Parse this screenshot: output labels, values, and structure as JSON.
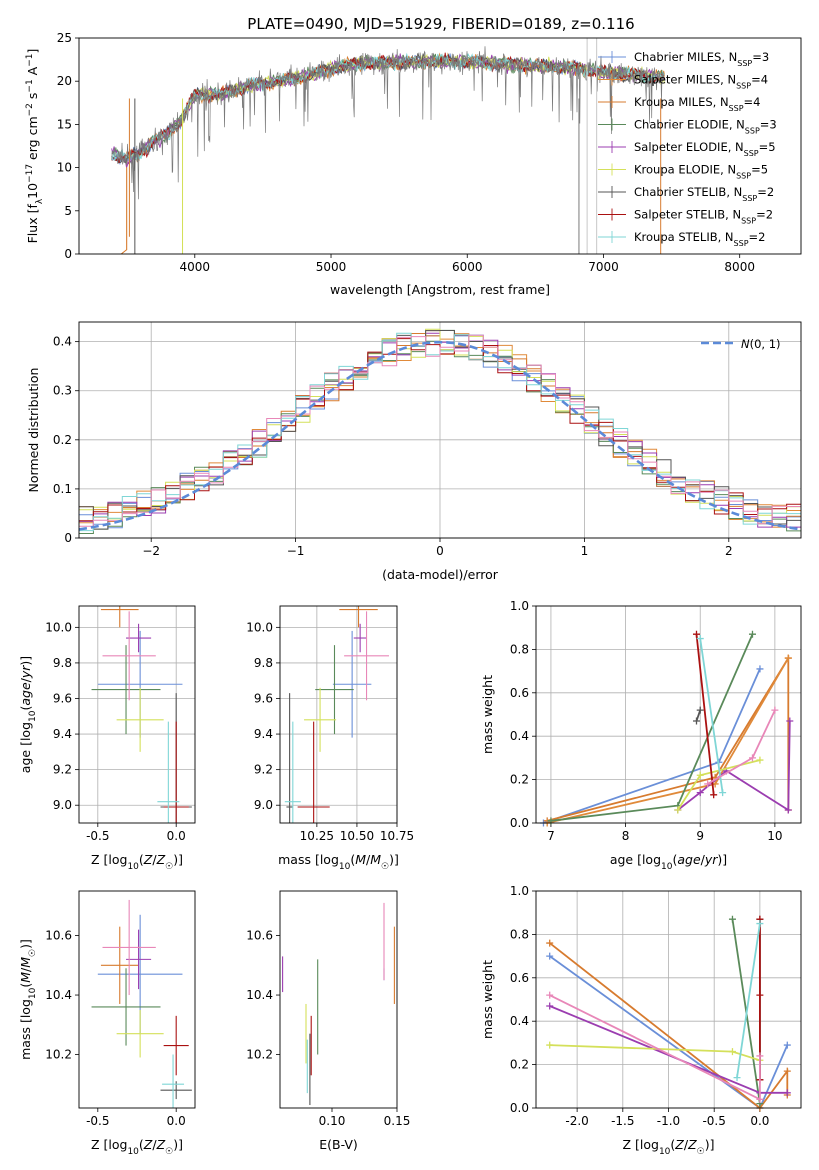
{
  "colors": {
    "Chabrier MILES": "#6a8fd8",
    "Salpeter MILES": "#e08a3a",
    "Kroupa MILES": "#d77b2f",
    "Chabrier ELODIE": "#5a8a5a",
    "Salpeter ELODIE": "#9b3db0",
    "Kroupa ELODIE": "#d4e05a",
    "Chabrier STELIB": "#555555",
    "Salpeter STELIB": "#aa1111",
    "Kroupa STELIB": "#7fd6d6",
    "pink": "#e887b8",
    "normal": "#5b8ad8"
  },
  "chart_data": [
    {
      "id": "spectrum",
      "type": "line",
      "title": "PLATE=0490, MJD=51929, FIBERID=0189, z=0.116",
      "xlabel": "wavelength [Angstrom, rest frame]",
      "ylabel": "Flux [f_λ 10^-17 erg cm^-2 s^-1 A^-1]",
      "xlim": [
        3150,
        8450
      ],
      "ylim": [
        0,
        25
      ],
      "xticks": [
        4000,
        5000,
        6000,
        7000,
        8000
      ],
      "yticks": [
        0,
        5,
        10,
        15,
        20,
        25
      ],
      "legend_position": "right",
      "legend": [
        {
          "label": "Chabrier MILES, N_SSP=3",
          "color": "#6a8fd8"
        },
        {
          "label": "Salpeter MILES, N_SSP=4",
          "color": "#e08a3a"
        },
        {
          "label": "Kroupa MILES, N_SSP=4",
          "color": "#d77b2f"
        },
        {
          "label": "Chabrier ELODIE, N_SSP=3",
          "color": "#5a8a5a"
        },
        {
          "label": "Salpeter ELODIE, N_SSP=5",
          "color": "#9b3db0"
        },
        {
          "label": "Kroupa ELODIE, N_SSP=5",
          "color": "#d4e05a"
        },
        {
          "label": "Chabrier STELIB, N_SSP=2",
          "color": "#555555"
        },
        {
          "label": "Salpeter STELIB, N_SSP=2",
          "color": "#aa1111"
        },
        {
          "label": "Kroupa STELIB, N_SSP=2",
          "color": "#7fd6d6"
        }
      ],
      "continuum_points": [
        [
          3390,
          11.5
        ],
        [
          3500,
          11
        ],
        [
          3600,
          11.8
        ],
        [
          3700,
          13
        ],
        [
          3800,
          14
        ],
        [
          3900,
          15.5
        ],
        [
          4000,
          18.5
        ],
        [
          4200,
          18.5
        ],
        [
          4400,
          19.5
        ],
        [
          4600,
          20
        ],
        [
          4800,
          20.5
        ],
        [
          5000,
          21.5
        ],
        [
          5200,
          22
        ],
        [
          5500,
          22.2
        ],
        [
          5800,
          22.3
        ],
        [
          6000,
          22.3
        ],
        [
          6300,
          22
        ],
        [
          6500,
          21.8
        ],
        [
          6800,
          21.5
        ],
        [
          7000,
          21
        ],
        [
          7300,
          20.6
        ],
        [
          7500,
          20.4
        ]
      ],
      "grey_line_x": [
        6880,
        6950
      ]
    },
    {
      "id": "residuals",
      "type": "histogram",
      "xlabel": "(data-model)/error",
      "ylabel": "Normed distribution",
      "xlim": [
        -2.5,
        2.5
      ],
      "ylim": [
        0,
        0.44
      ],
      "xticks": [
        -2,
        -1,
        0,
        1,
        2
      ],
      "yticks": [
        0.0,
        0.1,
        0.2,
        0.3,
        0.4
      ],
      "bin_width": 0.1,
      "legend": [
        {
          "label": "N(0,1)",
          "style": "dashed",
          "color": "#5b8ad8"
        }
      ],
      "legend_position": "top-right"
    },
    {
      "id": "age_vs_Z",
      "type": "errorbar",
      "xlabel": "Z [log10(Z/Z☉)]",
      "ylabel": "age  [log10(age/yr)]",
      "xlim": [
        -0.62,
        0.12
      ],
      "ylim": [
        8.9,
        10.12
      ],
      "xticks": [
        -0.5,
        0.0
      ],
      "yticks": [
        9.0,
        9.2,
        9.4,
        9.6,
        9.8,
        10.0
      ],
      "points": [
        {
          "c": "#6a8fd8",
          "x": -0.23,
          "xerr": 0.27,
          "y": 9.68,
          "yerr": 0.3
        },
        {
          "c": "#d77b2f",
          "x": -0.36,
          "xerr": 0.12,
          "y": 10.1,
          "yerr": 0.1
        },
        {
          "c": "#5a8a5a",
          "x": -0.32,
          "xerr": 0.22,
          "y": 9.65,
          "yerr": 0.25
        },
        {
          "c": "#9b3db0",
          "x": -0.24,
          "xerr": 0.08,
          "y": 9.94,
          "yerr": 0.08
        },
        {
          "c": "#d4e05a",
          "x": -0.23,
          "xerr": 0.15,
          "y": 9.48,
          "yerr": 0.18
        },
        {
          "c": "#555555",
          "x": 0.0,
          "xerr": 0.1,
          "y": 8.99,
          "yerr": 0.64
        },
        {
          "c": "#aa1111",
          "x": 0.0,
          "xerr": 0.08,
          "y": 8.99,
          "yerr": 0.48
        },
        {
          "c": "#7fd6d6",
          "x": -0.05,
          "xerr": 0.07,
          "y": 9.02,
          "yerr": 0.45
        },
        {
          "c": "#e887b8",
          "x": -0.3,
          "xerr": 0.17,
          "y": 9.84,
          "yerr": 0.25
        }
      ]
    },
    {
      "id": "age_vs_mass",
      "type": "errorbar",
      "xlabel": "mass [log10(M/M☉)]",
      "ylabel": "",
      "xlim": [
        10.02,
        10.75
      ],
      "ylim": [
        8.9,
        10.12
      ],
      "xticks": [
        10.25,
        10.5,
        10.75
      ],
      "yticks": [
        9.0,
        9.2,
        9.4,
        9.6,
        9.8,
        10.0
      ],
      "points": [
        {
          "c": "#6a8fd8",
          "x": 10.47,
          "xerr": 0.12,
          "y": 9.68,
          "yerr": 0.3
        },
        {
          "c": "#d77b2f",
          "x": 10.51,
          "xerr": 0.12,
          "y": 10.1,
          "yerr": 0.1
        },
        {
          "c": "#5a8a5a",
          "x": 10.36,
          "xerr": 0.12,
          "y": 9.65,
          "yerr": 0.25
        },
        {
          "c": "#9b3db0",
          "x": 10.52,
          "xerr": 0.04,
          "y": 9.94,
          "yerr": 0.08
        },
        {
          "c": "#d4e05a",
          "x": 10.27,
          "xerr": 0.1,
          "y": 9.48,
          "yerr": 0.18
        },
        {
          "c": "#555555",
          "x": 10.08,
          "xerr": 0.02,
          "y": 8.99,
          "yerr": 0.64
        },
        {
          "c": "#aa1111",
          "x": 10.23,
          "xerr": 0.1,
          "y": 8.99,
          "yerr": 0.48
        },
        {
          "c": "#7fd6d6",
          "x": 10.1,
          "xerr": 0.05,
          "y": 9.02,
          "yerr": 0.45
        },
        {
          "c": "#e887b8",
          "x": 10.56,
          "xerr": 0.14,
          "y": 9.84,
          "yerr": 0.25
        }
      ]
    },
    {
      "id": "weight_vs_age",
      "type": "line",
      "xlabel": "age  [log10(age/yr)]",
      "ylabel": "mass weight",
      "xlim": [
        6.8,
        10.35
      ],
      "ylim": [
        0,
        1.0
      ],
      "xticks": [
        7,
        8,
        9,
        10
      ],
      "yticks": [
        0.0,
        0.2,
        0.4,
        0.6,
        0.8,
        1.0
      ],
      "series": [
        {
          "c": "#6a8fd8",
          "pts": [
            [
              6.9,
              0.0
            ],
            [
              9.25,
              0.28
            ],
            [
              9.8,
              0.71
            ]
          ]
        },
        {
          "c": "#d77b2f",
          "pts": [
            [
              6.95,
              0.01
            ],
            [
              9.2,
              0.21
            ],
            [
              10.18,
              0.76
            ],
            [
              10.18,
              0.06
            ]
          ]
        },
        {
          "c": "#e08a3a",
          "pts": [
            [
              6.95,
              0.0
            ],
            [
              9.2,
              0.18
            ],
            [
              10.18,
              0.76
            ]
          ]
        },
        {
          "c": "#5a8a5a",
          "pts": [
            [
              7.0,
              0.01
            ],
            [
              8.7,
              0.08
            ],
            [
              9.7,
              0.87
            ]
          ]
        },
        {
          "c": "#9b3db0",
          "pts": [
            [
              8.7,
              0.06
            ],
            [
              9.0,
              0.14
            ],
            [
              9.35,
              0.24
            ],
            [
              10.18,
              0.06
            ],
            [
              10.2,
              0.47
            ]
          ]
        },
        {
          "c": "#d4e05a",
          "pts": [
            [
              8.7,
              0.06
            ],
            [
              9.0,
              0.22
            ],
            [
              9.8,
              0.29
            ]
          ]
        },
        {
          "c": "#555555",
          "pts": [
            [
              9.0,
              0.52
            ],
            [
              8.95,
              0.47
            ]
          ]
        },
        {
          "c": "#aa1111",
          "pts": [
            [
              8.95,
              0.87
            ],
            [
              9.18,
              0.13
            ]
          ]
        },
        {
          "c": "#7fd6d6",
          "pts": [
            [
              9.0,
              0.85
            ],
            [
              9.3,
              0.14
            ]
          ]
        },
        {
          "c": "#e887b8",
          "pts": [
            [
              9.1,
              0.18
            ],
            [
              9.7,
              0.3
            ],
            [
              10.0,
              0.52
            ]
          ]
        }
      ]
    },
    {
      "id": "mass_vs_Z",
      "type": "errorbar",
      "xlabel": "Z [log10(Z/Z☉)]",
      "ylabel": "mass [log10(M/M☉)]",
      "xlim": [
        -0.62,
        0.12
      ],
      "ylim": [
        10.02,
        10.75
      ],
      "xticks": [
        -0.5,
        0.0
      ],
      "yticks": [
        10.2,
        10.4,
        10.6
      ],
      "points": [
        {
          "c": "#6a8fd8",
          "x": -0.23,
          "xerr": 0.27,
          "y": 10.47,
          "yerr": 0.2
        },
        {
          "c": "#d77b2f",
          "x": -0.36,
          "xerr": 0.12,
          "y": 10.5,
          "yerr": 0.13
        },
        {
          "c": "#5a8a5a",
          "x": -0.32,
          "xerr": 0.22,
          "y": 10.36,
          "yerr": 0.13
        },
        {
          "c": "#9b3db0",
          "x": -0.24,
          "xerr": 0.08,
          "y": 10.52,
          "yerr": 0.1
        },
        {
          "c": "#d4e05a",
          "x": -0.23,
          "xerr": 0.15,
          "y": 10.27,
          "yerr": 0.08
        },
        {
          "c": "#555555",
          "x": 0.0,
          "xerr": 0.1,
          "y": 10.08,
          "yerr": 0.03
        },
        {
          "c": "#aa1111",
          "x": 0.0,
          "xerr": 0.08,
          "y": 10.23,
          "yerr": 0.1
        },
        {
          "c": "#7fd6d6",
          "x": -0.02,
          "xerr": 0.07,
          "y": 10.1,
          "yerr": 0.1
        },
        {
          "c": "#e887b8",
          "x": -0.3,
          "xerr": 0.17,
          "y": 10.56,
          "yerr": 0.16
        }
      ]
    },
    {
      "id": "mass_vs_ebv",
      "type": "errorbar",
      "xlabel": "E(B-V)",
      "ylabel": "",
      "xlim": [
        0.06,
        0.15
      ],
      "ylim": [
        10.02,
        10.75
      ],
      "xticks": [
        0.1,
        0.15
      ],
      "yticks": [
        10.2,
        10.4,
        10.6
      ],
      "points": [
        {
          "c": "#6a8fd8",
          "x": 0.14,
          "y": 10.47,
          "yerr": 0.02
        },
        {
          "c": "#d77b2f",
          "x": 0.148,
          "y": 10.5,
          "yerr": 0.13
        },
        {
          "c": "#5a8a5a",
          "x": 0.089,
          "y": 10.36,
          "yerr": 0.16
        },
        {
          "c": "#9b3db0",
          "x": 0.062,
          "y": 10.47,
          "yerr": 0.06
        },
        {
          "c": "#d4e05a",
          "x": 0.08,
          "y": 10.27,
          "yerr": 0.1
        },
        {
          "c": "#555555",
          "x": 0.083,
          "y": 10.15,
          "yerr": 0.12
        },
        {
          "c": "#aa1111",
          "x": 0.084,
          "y": 10.23,
          "yerr": 0.1
        },
        {
          "c": "#7fd6d6",
          "x": 0.081,
          "y": 10.16,
          "yerr": 0.09
        },
        {
          "c": "#e887b8",
          "x": 0.14,
          "y": 10.58,
          "yerr": 0.13
        }
      ]
    },
    {
      "id": "weight_vs_Z",
      "type": "line",
      "xlabel": "Z [log10(Z/Z☉)]",
      "ylabel": "mass weight",
      "xlim": [
        -2.45,
        0.45
      ],
      "ylim": [
        0,
        1.0
      ],
      "xticks": [
        -2.0,
        -1.5,
        -1.0,
        -0.5,
        0.0
      ],
      "yticks": [
        0.0,
        0.2,
        0.4,
        0.6,
        0.8,
        1.0
      ],
      "series": [
        {
          "c": "#6a8fd8",
          "pts": [
            [
              -2.3,
              0.7
            ],
            [
              0.0,
              0.0
            ],
            [
              0.3,
              0.29
            ]
          ]
        },
        {
          "c": "#d77b2f",
          "pts": [
            [
              -2.3,
              0.76
            ],
            [
              0.0,
              0.0
            ],
            [
              0.3,
              0.17
            ],
            [
              0.3,
              0.06
            ]
          ]
        },
        {
          "c": "#5a8a5a",
          "pts": [
            [
              -0.3,
              0.87
            ],
            [
              0.0,
              0.02
            ]
          ]
        },
        {
          "c": "#9b3db0",
          "pts": [
            [
              -2.3,
              0.47
            ],
            [
              0.0,
              0.07
            ],
            [
              0.3,
              0.07
            ]
          ]
        },
        {
          "c": "#d4e05a",
          "pts": [
            [
              -2.3,
              0.29
            ],
            [
              -0.3,
              0.26
            ],
            [
              0.0,
              0.22
            ]
          ]
        },
        {
          "c": "#555555",
          "pts": [
            [
              0.0,
              0.87
            ],
            [
              0.0,
              0.13
            ]
          ]
        },
        {
          "c": "#aa1111",
          "pts": [
            [
              0.0,
              0.87
            ],
            [
              0.0,
              0.52
            ],
            [
              0.0,
              0.13
            ]
          ]
        },
        {
          "c": "#7fd6d6",
          "pts": [
            [
              -0.25,
              0.14
            ],
            [
              0.0,
              0.85
            ]
          ]
        },
        {
          "c": "#e887b8",
          "pts": [
            [
              -2.3,
              0.52
            ],
            [
              0.0,
              0.04
            ],
            [
              0.0,
              0.24
            ]
          ]
        }
      ]
    }
  ]
}
